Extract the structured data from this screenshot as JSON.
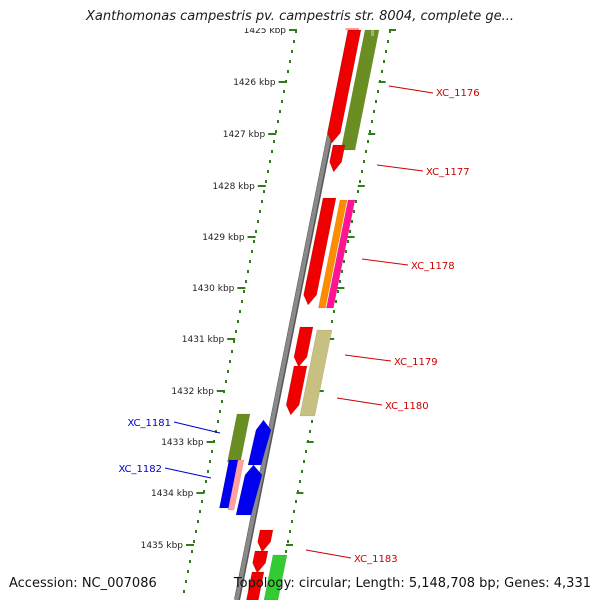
{
  "header": {
    "title": "Xanthomonas campestris pv. campestris str. 8004, complete ge..."
  },
  "footer": {
    "accession": "Accession: NC_007086",
    "summary": "Topology: circular; Length: 5,148,708 bp; Genes: 4,331"
  },
  "scale": {
    "tick_labels": [
      "1425 kbp",
      "1426 kbp",
      "1427 kbp",
      "1428 kbp",
      "1429 kbp",
      "1430 kbp",
      "1431 kbp",
      "1432 kbp",
      "1433 kbp",
      "1434 kbp",
      "1435 kbp"
    ]
  },
  "gene_labels": [
    {
      "name": "XC_1176",
      "color": "#cc0000"
    },
    {
      "name": "XC_1177",
      "color": "#cc0000"
    },
    {
      "name": "XC_1178",
      "color": "#cc0000"
    },
    {
      "name": "XC_1179",
      "color": "#cc0000"
    },
    {
      "name": "XC_1180",
      "color": "#cc0000"
    },
    {
      "name": "XC_1181",
      "color": "#0000cc"
    },
    {
      "name": "XC_1182",
      "color": "#0000cc"
    },
    {
      "name": "XC_1183",
      "color": "#cc0000"
    }
  ],
  "colors": {
    "backbone": "#8a8a8a",
    "tick": "#2e7d1a",
    "gene_red": "#ee0000",
    "gene_blue": "#0000ee",
    "gene_olive": "#6b8e23",
    "gene_orange": "#ff8c00",
    "gene_pink": "#ff1493",
    "gene_tan": "#c8c080",
    "gene_green": "#33cc33",
    "gene_salmon": "#ffa0a0"
  }
}
